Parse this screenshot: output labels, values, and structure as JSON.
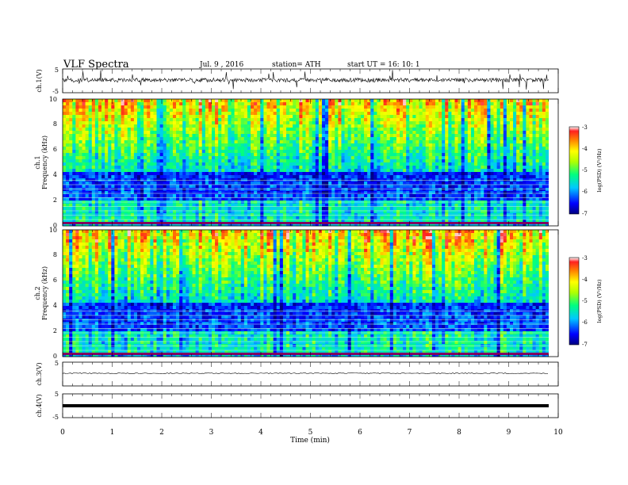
{
  "header": {
    "title": "VLF  Spectra",
    "date": "Jul.  9  , 2016",
    "station": "station= ATH",
    "start": "start  UT  =    16: 10: 1"
  },
  "chart_data": [
    {
      "type": "line",
      "name": "ch1-waveform",
      "ylabel": "ch.1(V)",
      "ylim": [
        -5,
        5
      ],
      "yticks": [
        "5",
        "-5"
      ],
      "xlim": [
        0,
        10
      ],
      "baseline": 0,
      "noise_amplitude": 0.8,
      "spike_amplitude": 3.0
    },
    {
      "type": "heatmap",
      "name": "ch1-spectrogram",
      "ylabel": "ch.1\nFrequency  (kHz)",
      "ylim": [
        0,
        10
      ],
      "yticks": [
        "0",
        "2",
        "4",
        "6",
        "8",
        "10"
      ],
      "xlim": [
        0,
        9.83
      ],
      "colorbar": {
        "label": "log(PSD) (V²/Hz)",
        "range": [
          -7,
          -3
        ],
        "ticks": [
          "-3",
          "-4",
          "-5",
          "-6",
          "-7"
        ]
      }
    },
    {
      "type": "heatmap",
      "name": "ch2-spectrogram",
      "ylabel": "ch.2\nFrequency  (kHz)",
      "ylim": [
        0,
        10
      ],
      "yticks": [
        "0",
        "2",
        "4",
        "6",
        "8",
        "10"
      ],
      "xlim": [
        0,
        9.83
      ],
      "colorbar": {
        "label": "log(PSD) (V²/Hz)",
        "range": [
          -7,
          -3
        ],
        "ticks": [
          "-3",
          "-4",
          "-5",
          "-6",
          "-7"
        ]
      }
    },
    {
      "type": "line",
      "name": "ch3-waveform",
      "ylabel": "ch.3(V)",
      "ylim": [
        -5,
        5
      ],
      "yticks": [
        "5"
      ],
      "xlim": [
        0,
        10
      ],
      "baseline": 0.6
    },
    {
      "type": "line",
      "name": "ch4-waveform",
      "ylabel": "ch.4(V)",
      "ylim": [
        -5,
        5
      ],
      "yticks": [
        "5",
        "-5"
      ],
      "xlim": [
        0,
        10
      ],
      "baseline": 0
    }
  ],
  "xaxis": {
    "label": "Time  (min)",
    "range": [
      0,
      10
    ],
    "ticks": [
      "0",
      "1",
      "2",
      "3",
      "4",
      "5",
      "6",
      "7",
      "8",
      "9",
      "10"
    ]
  }
}
